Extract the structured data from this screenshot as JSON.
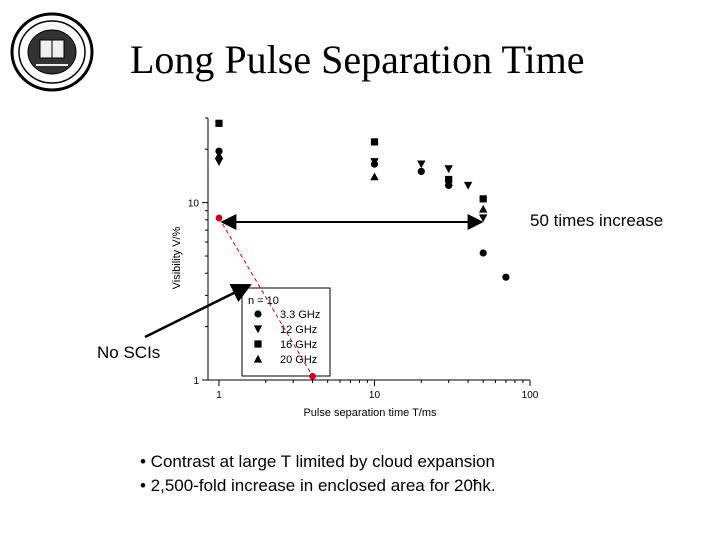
{
  "slide": {
    "title": "Long Pulse Separation Time",
    "logo_name": "university-seal"
  },
  "annotations": {
    "increase_label": "50 times increase",
    "no_scis_label": "No SCIs"
  },
  "bullets": [
    "• Contrast at large T limited by cloud expansion",
    "• 2,500-fold increase in enclosed area for 20ħk."
  ],
  "colors": {
    "accent_red": "#d0021b",
    "ink": "#000000"
  },
  "chart_data": {
    "type": "scatter",
    "xscale": "log",
    "yscale": "log",
    "xlim": [
      0.85,
      100
    ],
    "ylim": [
      1,
      30
    ],
    "xlabel": "Pulse separation time T/ms",
    "ylabel": "Visibility V/%",
    "xticks": [
      {
        "v": 1,
        "label": "1"
      },
      {
        "v": 10,
        "label": "10"
      },
      {
        "v": 100,
        "label": "100"
      }
    ],
    "yticks": [
      {
        "v": 1,
        "label": "1"
      },
      {
        "v": 10,
        "label": "10"
      }
    ],
    "legend_title": "n = 10",
    "legend_position": "bottom-left",
    "series": [
      {
        "name": "3.3 GHz",
        "marker": "circle",
        "points": [
          [
            1,
            19.5
          ],
          [
            10,
            16.5
          ],
          [
            20,
            15
          ],
          [
            30,
            12.5
          ],
          [
            50,
            5.2
          ],
          [
            70,
            3.8
          ]
        ]
      },
      {
        "name": "12 GHz",
        "marker": "triangle-down",
        "points": [
          [
            1,
            17
          ],
          [
            10,
            17
          ],
          [
            20,
            16.5
          ],
          [
            30,
            15.5
          ],
          [
            40,
            12.5
          ],
          [
            50,
            8.2
          ]
        ]
      },
      {
        "name": "16 GHz",
        "marker": "square",
        "points": [
          [
            1,
            28
          ],
          [
            10,
            22
          ],
          [
            30,
            13.5
          ],
          [
            50,
            10.5
          ]
        ]
      },
      {
        "name": "20 GHz",
        "marker": "triangle-up",
        "points": [
          [
            1,
            18.5
          ],
          [
            10,
            14
          ],
          [
            30,
            13
          ],
          [
            50,
            9.2
          ]
        ]
      }
    ],
    "red_points": [
      [
        1,
        8.2
      ],
      [
        4,
        1.05
      ]
    ]
  }
}
